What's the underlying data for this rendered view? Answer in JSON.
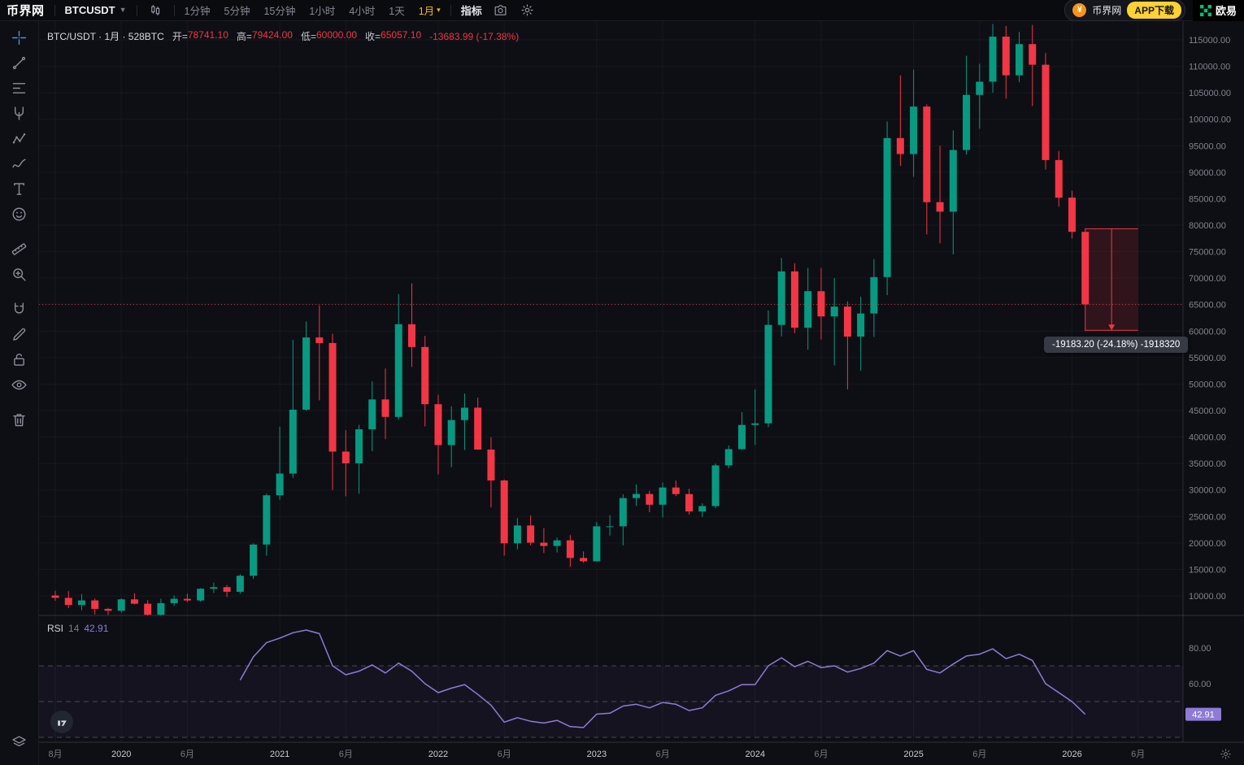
{
  "topbar": {
    "logo": "币界网",
    "symbol": "BTCUSDT",
    "timeframes": [
      {
        "label": "1分钟"
      },
      {
        "label": "5分钟"
      },
      {
        "label": "15分钟"
      },
      {
        "label": "1小时"
      },
      {
        "label": "4小时"
      },
      {
        "label": "1天"
      },
      {
        "label": "1月",
        "active": true,
        "caret": true
      }
    ],
    "indicators_label": "指标",
    "right": {
      "coin_glyph": "¥",
      "site_badge": "币界网",
      "app_download": "APP下载",
      "partner": "欧易"
    }
  },
  "sidebar": {
    "tools": [
      {
        "name": "crosshair-tool",
        "icon": "crosshair",
        "active": true
      },
      {
        "name": "trend-line-tool",
        "icon": "trendline"
      },
      {
        "name": "fib-retracement-tool",
        "icon": "fib"
      },
      {
        "name": "pitchfork-tool",
        "icon": "pitchfork"
      },
      {
        "name": "pattern-tool",
        "icon": "pattern"
      },
      {
        "name": "brush-tool",
        "icon": "brush"
      },
      {
        "name": "text-tool",
        "icon": "text"
      },
      {
        "name": "emoji-tool",
        "icon": "emoji"
      },
      {
        "name": "measure-tool",
        "icon": "ruler",
        "gap_before": true
      },
      {
        "name": "zoom-in-tool",
        "icon": "zoom"
      },
      {
        "name": "magnet-tool",
        "icon": "magnet",
        "gap_before": true
      },
      {
        "name": "draw-tool",
        "icon": "pencil"
      },
      {
        "name": "lock-tool",
        "icon": "lock"
      },
      {
        "name": "hide-drawings-tool",
        "icon": "eye"
      },
      {
        "name": "remove-drawings-tool",
        "icon": "trash",
        "gap_before": true
      }
    ],
    "bottom_tool": {
      "name": "object-tree-tool",
      "icon": "layers"
    }
  },
  "legend": {
    "title": "BTC/USDT · 1月 · 528BTC",
    "open_label": "开=",
    "open": "78741.10",
    "high_label": "高=",
    "high": "79424.00",
    "low_label": "低=",
    "low": "60000.00",
    "close_label": "收=",
    "close": "65057.10",
    "change": "-13683.99 (-17.38%)"
  },
  "rsi_legend": {
    "name": "RSI",
    "length": "14",
    "value": "42.91"
  },
  "colors": {
    "up": "#089981",
    "down": "#f23645",
    "rsi": "#8e7bd6",
    "active_tool": "#4a90e2",
    "timeframe_active": "#f0b90b",
    "app_button": "#ffd234",
    "partner_green": "#00c076",
    "coin_orange": "#f7931a"
  },
  "chart_data": {
    "type": "candlestick",
    "title": "BTC/USDT 1月",
    "x_unit": "month",
    "price_axis": {
      "min": 10000,
      "max": 115000,
      "step": 5000
    },
    "close_line": 65057.1,
    "candles": [
      [
        "2019-08",
        10080,
        10950,
        9080,
        9630
      ],
      [
        "2019-09",
        9630,
        10900,
        7700,
        8290
      ],
      [
        "2019-10",
        8290,
        10350,
        7300,
        9150
      ],
      [
        "2019-11",
        9150,
        9500,
        6515,
        7550
      ],
      [
        "2019-12",
        7550,
        7750,
        6425,
        7200
      ],
      [
        "2020-01",
        7200,
        9550,
        6850,
        9350
      ],
      [
        "2020-02",
        9350,
        10500,
        8400,
        8525
      ],
      [
        "2020-03",
        8525,
        9200,
        3800,
        6440
      ],
      [
        "2020-04",
        6440,
        9460,
        6140,
        8630
      ],
      [
        "2020-05",
        8630,
        10070,
        8100,
        9450
      ],
      [
        "2020-06",
        9450,
        10380,
        8830,
        9140
      ],
      [
        "2020-07",
        9140,
        11450,
        8900,
        11350
      ],
      [
        "2020-08",
        11350,
        12480,
        10550,
        11650
      ],
      [
        "2020-09",
        11650,
        12050,
        9800,
        10780
      ],
      [
        "2020-10",
        10780,
        14100,
        10380,
        13800
      ],
      [
        "2020-11",
        13800,
        19900,
        13200,
        19700
      ],
      [
        "2020-12",
        19700,
        29300,
        17600,
        29000
      ],
      [
        "2021-01",
        29000,
        41950,
        28150,
        33100
      ],
      [
        "2021-02",
        33100,
        58350,
        32300,
        45160
      ],
      [
        "2021-03",
        45160,
        61800,
        44950,
        58800
      ],
      [
        "2021-04",
        58800,
        64850,
        46930,
        57750
      ],
      [
        "2021-05",
        57750,
        59500,
        30000,
        37250
      ],
      [
        "2021-06",
        37250,
        41300,
        28800,
        35040
      ],
      [
        "2021-07",
        35040,
        42300,
        29300,
        41460
      ],
      [
        "2021-08",
        41460,
        50500,
        37300,
        47100
      ],
      [
        "2021-09",
        47100,
        52950,
        39600,
        43800
      ],
      [
        "2021-10",
        43800,
        67000,
        43300,
        61300
      ],
      [
        "2021-11",
        61300,
        69000,
        53250,
        57000
      ],
      [
        "2021-12",
        57000,
        59100,
        42000,
        46200
      ],
      [
        "2022-01",
        46200,
        47990,
        32950,
        38480
      ],
      [
        "2022-02",
        38480,
        45800,
        34300,
        43200
      ],
      [
        "2022-03",
        43200,
        48200,
        37550,
        45540
      ],
      [
        "2022-04",
        45540,
        47450,
        37580,
        37630
      ],
      [
        "2022-05",
        37630,
        40000,
        26700,
        31800
      ],
      [
        "2022-06",
        31800,
        31980,
        17600,
        19925
      ],
      [
        "2022-07",
        19925,
        24700,
        18800,
        23300
      ],
      [
        "2022-08",
        23300,
        25200,
        19550,
        20050
      ],
      [
        "2022-09",
        20050,
        22800,
        18100,
        19430
      ],
      [
        "2022-10",
        19430,
        21000,
        18200,
        20490
      ],
      [
        "2022-11",
        20490,
        21480,
        15480,
        17165
      ],
      [
        "2022-12",
        17165,
        18400,
        16250,
        16540
      ],
      [
        "2023-01",
        16540,
        23960,
        16500,
        23130
      ],
      [
        "2023-02",
        23130,
        25250,
        21400,
        23140
      ],
      [
        "2023-03",
        23140,
        29180,
        19550,
        28470
      ],
      [
        "2023-04",
        28470,
        31050,
        27000,
        29250
      ],
      [
        "2023-05",
        29250,
        29850,
        25800,
        27220
      ],
      [
        "2023-06",
        27220,
        31400,
        24800,
        30470
      ],
      [
        "2023-07",
        30470,
        31800,
        28850,
        29230
      ],
      [
        "2023-08",
        29230,
        30200,
        25350,
        25940
      ],
      [
        "2023-09",
        25940,
        27480,
        24900,
        26960
      ],
      [
        "2023-10",
        26960,
        35000,
        26550,
        34650
      ],
      [
        "2023-11",
        34650,
        38400,
        34100,
        37710
      ],
      [
        "2023-12",
        37710,
        44700,
        37600,
        42280
      ],
      [
        "2024-01",
        42280,
        48970,
        38500,
        42580
      ],
      [
        "2024-02",
        42580,
        63900,
        41900,
        61170
      ],
      [
        "2024-03",
        61170,
        73800,
        59000,
        71280
      ],
      [
        "2024-04",
        71280,
        72800,
        59600,
        60640
      ],
      [
        "2024-05",
        60640,
        71950,
        56500,
        67540
      ],
      [
        "2024-06",
        67540,
        71900,
        58400,
        62770
      ],
      [
        "2024-07",
        62770,
        70000,
        53500,
        64630
      ],
      [
        "2024-08",
        64630,
        65600,
        49000,
        58970
      ],
      [
        "2024-09",
        58970,
        66500,
        52550,
        63330
      ],
      [
        "2024-10",
        63330,
        73600,
        58900,
        70200
      ],
      [
        "2024-11",
        70200,
        99600,
        66800,
        96450
      ],
      [
        "2024-12",
        96450,
        108300,
        91200,
        93430
      ],
      [
        "2025-01",
        93430,
        109350,
        89150,
        102400
      ],
      [
        "2025-02",
        102400,
        102800,
        78250,
        84350
      ],
      [
        "2025-03",
        84350,
        95000,
        76600,
        82550
      ],
      [
        "2025-04",
        82550,
        97900,
        74500,
        94200
      ],
      [
        "2025-05",
        94200,
        112000,
        93350,
        104600
      ],
      [
        "2025-06",
        104600,
        110500,
        98200,
        107100
      ],
      [
        "2025-07",
        107100,
        118000,
        105000,
        115600
      ],
      [
        "2025-08",
        115600,
        117600,
        103900,
        108300
      ],
      [
        "2025-09",
        108300,
        116500,
        107000,
        114200
      ],
      [
        "2025-10",
        114200,
        117800,
        102500,
        110300
      ],
      [
        "2025-11",
        110300,
        112500,
        90500,
        92300
      ],
      [
        "2025-12",
        92300,
        94000,
        83500,
        85200
      ],
      [
        "2026-01",
        85200,
        86500,
        77500,
        78741
      ],
      [
        "2026-02",
        78741.1,
        79424,
        60000,
        65057.1
      ]
    ],
    "time_ticks": [
      {
        "label": "8月",
        "index": 0,
        "major": false
      },
      {
        "label": "2020",
        "index": 5,
        "major": true
      },
      {
        "label": "6月",
        "index": 10,
        "major": false
      },
      {
        "label": "2021",
        "index": 17,
        "major": true
      },
      {
        "label": "6月",
        "index": 22,
        "major": false
      },
      {
        "label": "2022",
        "index": 29,
        "major": true
      },
      {
        "label": "6月",
        "index": 34,
        "major": false
      },
      {
        "label": "2023",
        "index": 41,
        "major": true
      },
      {
        "label": "6月",
        "index": 46,
        "major": false
      },
      {
        "label": "2024",
        "index": 53,
        "major": true
      },
      {
        "label": "6月",
        "index": 58,
        "major": false
      },
      {
        "label": "2025",
        "index": 65,
        "major": true
      },
      {
        "label": "6月",
        "index": 70,
        "major": false
      },
      {
        "label": "2026",
        "index": 77,
        "major": true
      },
      {
        "label": "6月",
        "index": 82,
        "major": false
      }
    ],
    "measure": {
      "from_index": 78,
      "to_index": 82,
      "from_price": 79335.5,
      "to_price": 60152.3,
      "label": "-19183.20 (-24.18%) -1918320"
    },
    "rsi": {
      "length": 14,
      "start_index": 14,
      "upper_band": 70,
      "middle": 50,
      "lower_band": 30,
      "axis_ticks": [
        80,
        60
      ],
      "current": 42.91,
      "values": [
        62,
        75,
        83,
        85.5,
        88.5,
        90,
        88,
        70,
        65,
        67,
        70.5,
        66,
        71.5,
        67,
        60,
        55,
        57.5,
        59.5,
        54,
        48,
        38.5,
        41,
        39,
        38,
        39.5,
        36,
        35.5,
        43,
        43.5,
        47.5,
        48.5,
        46.5,
        49.5,
        48.5,
        45,
        46.5,
        53.5,
        56,
        59.5,
        59.5,
        70,
        74.5,
        69.5,
        72.5,
        69,
        70,
        66.5,
        68.5,
        71.5,
        78.5,
        75.5,
        78.5,
        68,
        66,
        71,
        75.5,
        76.5,
        79.5,
        74,
        76.5,
        73,
        60,
        55,
        50,
        42.91
      ]
    }
  }
}
